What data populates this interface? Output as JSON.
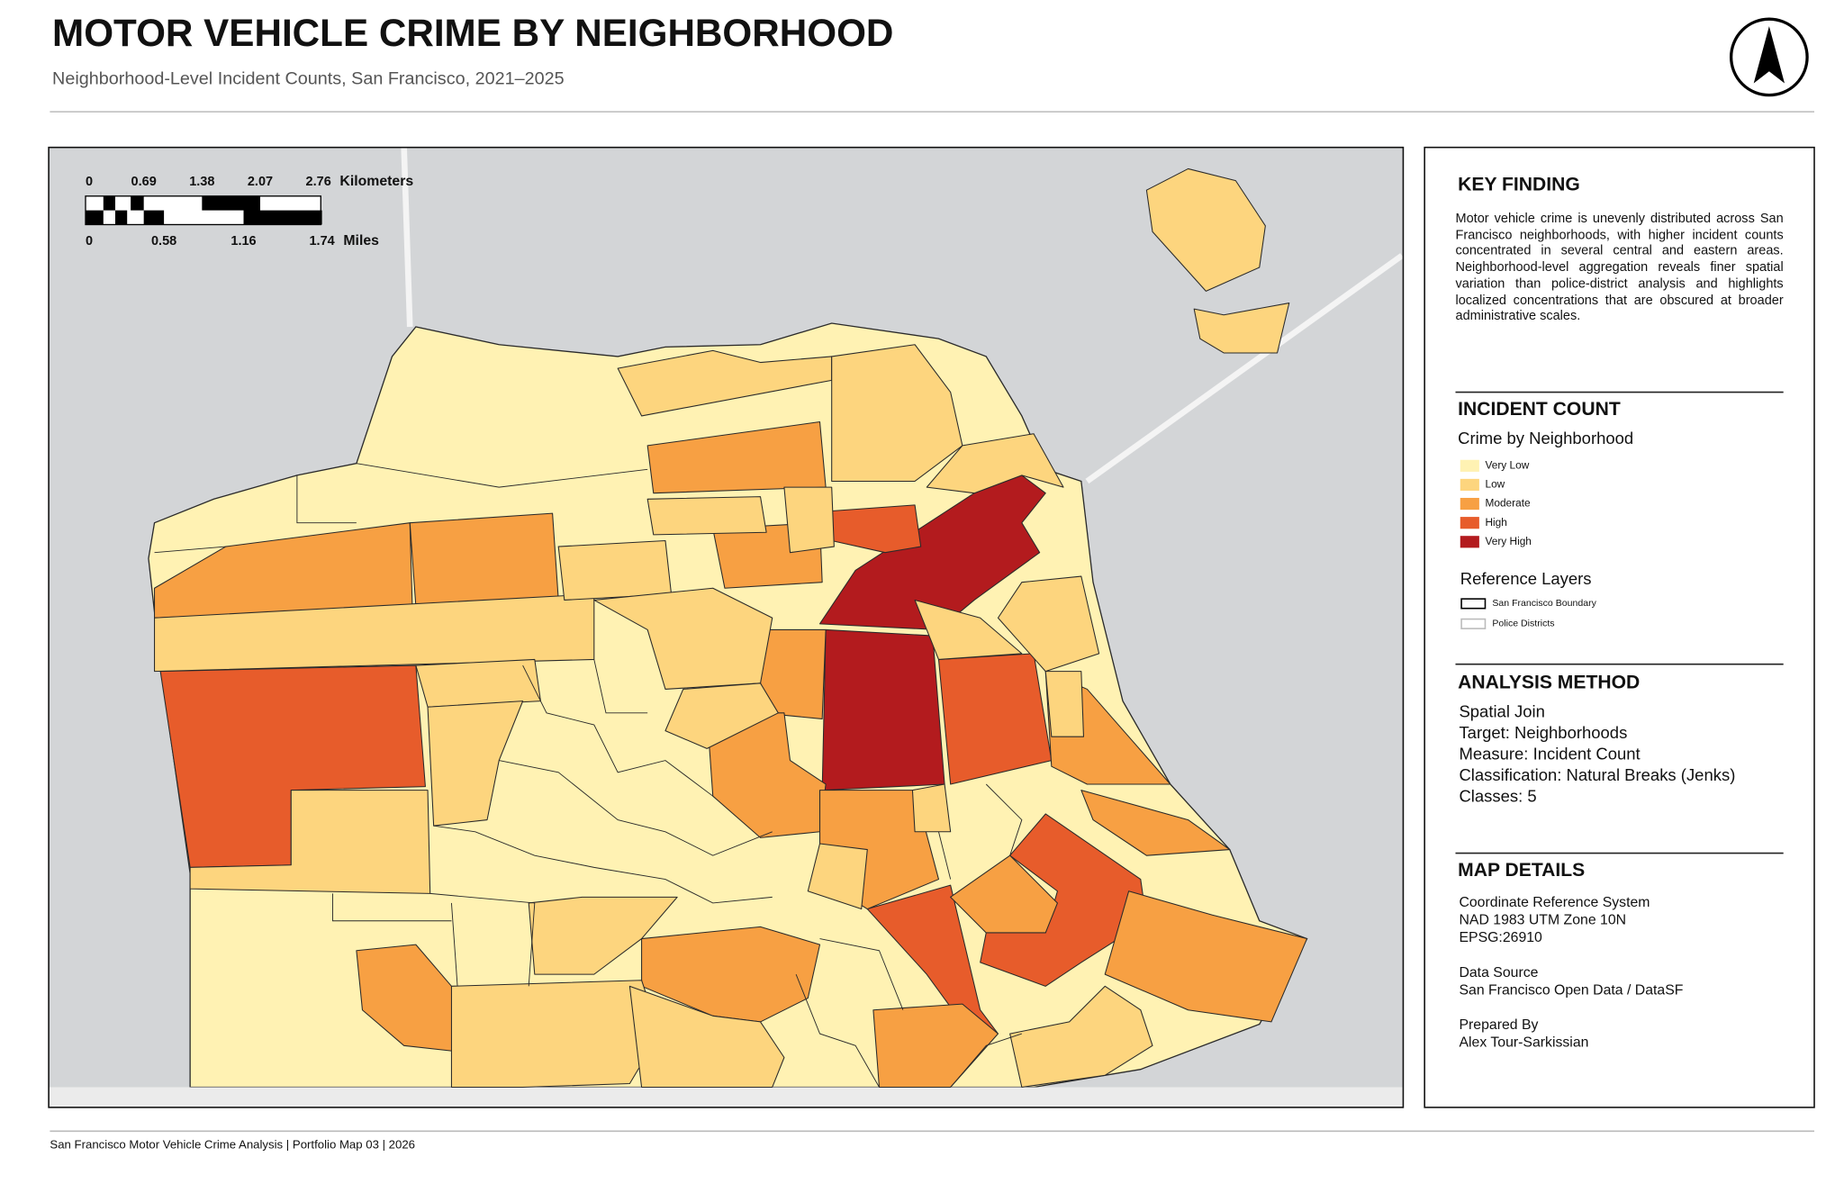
{
  "header": {
    "title": "MOTOR VEHICLE CRIME BY NEIGHBORHOOD",
    "subtitle": "Neighborhood-Level Incident Counts, San Francisco, 2021–2025"
  },
  "scale_bar": {
    "km_labels": [
      "0",
      "0.69",
      "1.38",
      "2.07",
      "2.76"
    ],
    "km_unit": "Kilometers",
    "mile_labels": [
      "0",
      "0.58",
      "1.16",
      "1.74"
    ],
    "mile_unit": "Miles"
  },
  "key_finding": {
    "heading": "KEY FINDING",
    "text": "Motor vehicle crime is unevenly distributed across San Francisco neighborhoods, with higher incident counts concentrated in several central and eastern areas. Neighborhood-level aggregation reveals finer spatial variation than police-district analysis and highlights localized concentrations that are obscured at broader administrative scales."
  },
  "incident_count": {
    "heading": "INCIDENT COUNT",
    "subheading": "Crime by Neighborhood",
    "classes": [
      {
        "label": "Very Low",
        "color": "#fff2b3"
      },
      {
        "label": "Low",
        "color": "#fdd57e"
      },
      {
        "label": "Moderate",
        "color": "#f7a043"
      },
      {
        "label": "High",
        "color": "#e75c2b"
      },
      {
        "label": "Very High",
        "color": "#b31b1e"
      }
    ],
    "reference_heading": "Reference Layers",
    "reference_layers": [
      "San Francisco Boundary",
      "Police Districts"
    ]
  },
  "analysis_method": {
    "heading": "ANALYSIS METHOD",
    "lines": [
      "Spatial Join",
      "Target: Neighborhoods",
      "Measure: Incident Count",
      "Classification: Natural Breaks (Jenks)",
      "Classes: 5"
    ]
  },
  "map_details": {
    "heading": "MAP DETAILS",
    "groups": [
      [
        "Coordinate Reference System",
        "NAD 1983 UTM Zone 10N",
        "EPSG:26910"
      ],
      [
        "Data Source",
        "San Francisco Open Data / DataSF"
      ],
      [
        "Prepared By",
        "Alex Tour-Sarkissian"
      ]
    ]
  },
  "footer": "San Francisco Motor Vehicle Crime Analysis | Portfolio Map 03 | 2026"
}
